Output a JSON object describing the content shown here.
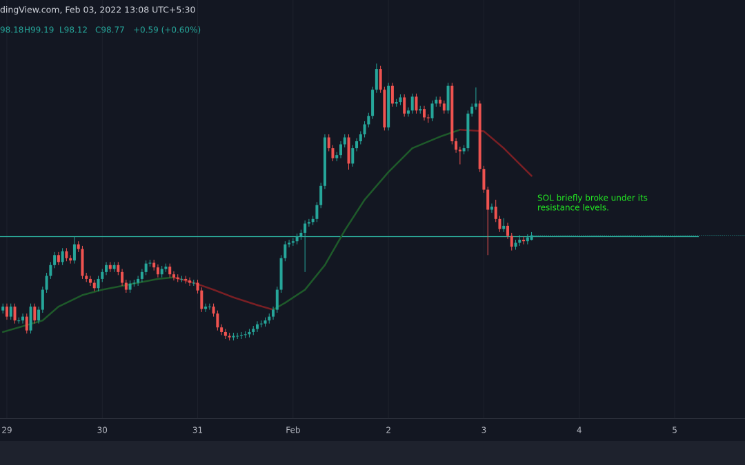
{
  "header": {
    "title": "dingView.com, Feb 03, 2022 13:08 UTC+5:30",
    "ohlc_legend": [
      "98.18",
      "H99.19",
      "L98.12",
      "C98.77",
      "+0.59 (+0.60%)"
    ]
  },
  "chart_data": {
    "type": "candlestick",
    "up_color": "#26a69a",
    "down_color": "#ef5350",
    "xlim": [
      -0.73,
      186.7
    ],
    "ylim": [
      75,
      126.5
    ],
    "xticks": [
      {
        "value": 1,
        "label": "29"
      },
      {
        "value": 25,
        "label": "30"
      },
      {
        "value": 49,
        "label": "31"
      },
      {
        "value": 73,
        "label": "Feb"
      },
      {
        "value": 97,
        "label": "2"
      },
      {
        "value": 121,
        "label": "3"
      },
      {
        "value": 145,
        "label": "4"
      },
      {
        "value": 169,
        "label": "5"
      }
    ],
    "ohlc": [
      [
        89.0,
        89.9,
        88.6,
        89.5
      ],
      [
        89.5,
        89.9,
        87.8,
        88.2
      ],
      [
        88.2,
        89.9,
        87.8,
        89.5
      ],
      [
        89.5,
        89.9,
        87.3,
        87.7
      ],
      [
        87.7,
        88.1,
        87.3,
        87.7
      ],
      [
        87.7,
        88.6,
        87.3,
        88.2
      ],
      [
        88.2,
        88.6,
        86.0,
        86.4
      ],
      [
        86.4,
        89.9,
        86.0,
        89.5
      ],
      [
        89.5,
        89.9,
        87.3,
        87.7
      ],
      [
        87.7,
        89.5,
        87.3,
        89.1
      ],
      [
        89.1,
        92.1,
        88.7,
        91.7
      ],
      [
        91.7,
        93.9,
        91.3,
        93.5
      ],
      [
        93.5,
        95.3,
        93.1,
        94.9
      ],
      [
        94.9,
        96.6,
        94.5,
        96.2
      ],
      [
        96.2,
        96.6,
        94.9,
        95.3
      ],
      [
        95.3,
        97.1,
        94.9,
        96.7
      ],
      [
        96.7,
        97.1,
        95.4,
        95.8
      ],
      [
        95.8,
        96.2,
        95.1,
        95.5
      ],
      [
        95.5,
        98.6,
        95.1,
        97.6
      ],
      [
        97.6,
        98.0,
        96.6,
        97.0
      ],
      [
        97.0,
        97.4,
        93.1,
        93.5
      ],
      [
        93.5,
        93.9,
        92.7,
        93.1
      ],
      [
        93.1,
        93.5,
        92.2,
        92.6
      ],
      [
        92.6,
        93.0,
        91.5,
        91.9
      ],
      [
        91.9,
        93.5,
        91.5,
        93.1
      ],
      [
        93.1,
        94.4,
        92.7,
        94.0
      ],
      [
        94.0,
        95.3,
        93.6,
        94.9
      ],
      [
        94.9,
        95.3,
        94.0,
        94.4
      ],
      [
        94.4,
        95.3,
        94.0,
        94.9
      ],
      [
        94.9,
        95.3,
        93.6,
        94.0
      ],
      [
        94.0,
        94.4,
        92.2,
        92.6
      ],
      [
        92.6,
        93.0,
        91.3,
        91.7
      ],
      [
        91.7,
        92.9,
        91.3,
        92.5
      ],
      [
        92.5,
        93.0,
        92.1,
        92.6
      ],
      [
        92.6,
        93.5,
        92.2,
        93.1
      ],
      [
        93.1,
        94.4,
        92.7,
        94.0
      ],
      [
        94.0,
        95.5,
        93.6,
        95.1
      ],
      [
        95.1,
        95.6,
        94.7,
        95.2
      ],
      [
        95.2,
        95.6,
        94.2,
        94.6
      ],
      [
        94.6,
        95.0,
        93.3,
        93.7
      ],
      [
        93.7,
        94.8,
        93.3,
        94.4
      ],
      [
        94.4,
        95.1,
        94.0,
        94.7
      ],
      [
        94.7,
        95.1,
        93.3,
        93.7
      ],
      [
        93.7,
        94.1,
        92.9,
        93.3
      ],
      [
        93.3,
        93.7,
        92.7,
        93.1
      ],
      [
        93.1,
        93.5,
        92.7,
        93.1
      ],
      [
        93.1,
        93.5,
        92.5,
        92.9
      ],
      [
        92.9,
        93.3,
        92.2,
        92.6
      ],
      [
        92.6,
        93.0,
        92.2,
        92.6
      ],
      [
        92.6,
        93.0,
        91.2,
        91.6
      ],
      [
        91.6,
        92.0,
        88.8,
        89.2
      ],
      [
        89.2,
        89.9,
        88.8,
        89.5
      ],
      [
        89.5,
        89.9,
        89.1,
        89.5
      ],
      [
        89.5,
        89.9,
        88.2,
        88.6
      ],
      [
        88.6,
        89.0,
        86.4,
        86.8
      ],
      [
        86.8,
        87.2,
        85.8,
        86.2
      ],
      [
        86.2,
        86.6,
        85.3,
        85.7
      ],
      [
        85.7,
        86.1,
        85.1,
        85.5
      ],
      [
        85.5,
        86.1,
        85.1,
        85.7
      ],
      [
        85.7,
        86.1,
        85.3,
        85.7
      ],
      [
        85.7,
        86.2,
        85.3,
        85.8
      ],
      [
        85.8,
        86.3,
        85.4,
        85.9
      ],
      [
        85.9,
        86.6,
        85.5,
        86.2
      ],
      [
        86.2,
        87.0,
        85.8,
        86.6
      ],
      [
        86.6,
        87.6,
        86.2,
        87.2
      ],
      [
        87.2,
        87.7,
        86.8,
        87.3
      ],
      [
        87.3,
        88.1,
        86.9,
        87.7
      ],
      [
        87.7,
        88.6,
        87.3,
        88.2
      ],
      [
        88.2,
        89.5,
        87.8,
        89.1
      ],
      [
        89.1,
        92.1,
        88.7,
        91.7
      ],
      [
        91.7,
        96.2,
        91.3,
        95.8
      ],
      [
        95.8,
        98.0,
        95.4,
        97.6
      ],
      [
        97.6,
        98.2,
        97.2,
        97.8
      ],
      [
        97.8,
        98.4,
        97.4,
        98.0
      ],
      [
        98.0,
        99.0,
        97.6,
        98.6
      ],
      [
        98.6,
        99.5,
        98.2,
        99.1
      ],
      [
        99.1,
        100.7,
        94.0,
        100.3
      ],
      [
        100.3,
        100.9,
        99.9,
        100.5
      ],
      [
        100.5,
        101.3,
        100.1,
        100.9
      ],
      [
        100.9,
        103.1,
        100.5,
        102.7
      ],
      [
        102.7,
        105.6,
        102.3,
        105.2
      ],
      [
        105.2,
        111.9,
        104.8,
        111.5
      ],
      [
        111.5,
        111.9,
        109.7,
        110.1
      ],
      [
        110.1,
        110.5,
        108.4,
        108.8
      ],
      [
        108.8,
        109.6,
        108.4,
        109.2
      ],
      [
        109.2,
        111.0,
        108.8,
        110.6
      ],
      [
        110.6,
        111.9,
        110.2,
        111.5
      ],
      [
        111.5,
        111.9,
        107.3,
        108.1
      ],
      [
        108.1,
        110.5,
        107.7,
        110.1
      ],
      [
        110.1,
        111.4,
        109.7,
        111.0
      ],
      [
        111.0,
        112.3,
        110.6,
        111.9
      ],
      [
        111.9,
        113.6,
        111.5,
        113.2
      ],
      [
        113.2,
        114.7,
        112.8,
        114.3
      ],
      [
        114.3,
        118.1,
        113.9,
        117.7
      ],
      [
        117.7,
        121.1,
        117.3,
        120.4
      ],
      [
        120.4,
        120.8,
        117.3,
        117.7
      ],
      [
        117.7,
        118.1,
        112.4,
        112.8
      ],
      [
        112.8,
        118.6,
        112.4,
        118.2
      ],
      [
        118.2,
        118.6,
        115.5,
        115.9
      ],
      [
        115.9,
        116.5,
        115.5,
        116.1
      ],
      [
        116.1,
        117.1,
        115.7,
        116.7
      ],
      [
        116.7,
        117.1,
        114.2,
        114.6
      ],
      [
        114.6,
        115.4,
        114.2,
        115.0
      ],
      [
        115.0,
        117.2,
        114.6,
        116.8
      ],
      [
        116.8,
        117.2,
        114.6,
        115.0
      ],
      [
        115.0,
        115.6,
        114.6,
        115.2
      ],
      [
        115.2,
        115.6,
        113.7,
        114.1
      ],
      [
        114.1,
        114.5,
        113.4,
        114.0
      ],
      [
        114.0,
        116.3,
        113.6,
        115.9
      ],
      [
        115.9,
        116.8,
        115.5,
        116.4
      ],
      [
        116.4,
        116.8,
        115.5,
        115.9
      ],
      [
        115.9,
        116.3,
        114.6,
        115.0
      ],
      [
        115.0,
        118.6,
        114.6,
        118.2
      ],
      [
        118.2,
        118.6,
        110.6,
        111.0
      ],
      [
        111.0,
        111.4,
        109.5,
        109.9
      ],
      [
        109.9,
        110.3,
        108.0,
        109.7
      ],
      [
        109.7,
        110.5,
        109.3,
        110.1
      ],
      [
        110.1,
        115.0,
        109.7,
        114.6
      ],
      [
        114.6,
        115.9,
        114.2,
        115.5
      ],
      [
        115.5,
        118.0,
        115.1,
        115.9
      ],
      [
        115.9,
        116.3,
        107.0,
        107.4
      ],
      [
        107.4,
        107.8,
        104.3,
        104.7
      ],
      [
        104.7,
        105.1,
        96.2,
        102.1
      ],
      [
        102.1,
        102.9,
        101.7,
        102.5
      ],
      [
        102.5,
        103.4,
        100.5,
        100.9
      ],
      [
        100.9,
        101.3,
        99.2,
        99.6
      ],
      [
        99.6,
        101.0,
        99.2,
        100.0
      ],
      [
        100.0,
        100.4,
        98.3,
        98.7
      ],
      [
        98.7,
        99.1,
        96.8,
        97.3
      ],
      [
        97.3,
        98.2,
        96.9,
        97.8
      ],
      [
        97.8,
        98.8,
        97.4,
        98.2
      ],
      [
        98.2,
        98.6,
        97.6,
        98.0
      ],
      [
        98.0,
        98.9,
        97.6,
        98.5
      ],
      [
        98.18,
        99.19,
        98.12,
        98.77
      ]
    ],
    "moving_average": {
      "rising_color": "#1e5a2a",
      "falling_color": "#7a1f24",
      "x": [
        0,
        10,
        14,
        20,
        25,
        32,
        39,
        43,
        48,
        53,
        58,
        64,
        68,
        71,
        76,
        81,
        86,
        91,
        97,
        103,
        110,
        115,
        121,
        126,
        133
      ],
      "values": [
        86.2,
        87.7,
        89.5,
        91.0,
        91.7,
        92.4,
        93.1,
        93.3,
        92.6,
        91.7,
        90.7,
        89.7,
        89.1,
        90.0,
        91.7,
        94.9,
        99.4,
        103.4,
        107.0,
        110.1,
        111.6,
        112.5,
        112.3,
        110.1,
        106.5
      ]
    },
    "horizontal_line": {
      "value": 98.6,
      "color": "#2fbfaa"
    },
    "annotation": {
      "lines": [
        "SOL briefly broke under its",
        "resistance levels."
      ],
      "color": "#22e622"
    }
  }
}
